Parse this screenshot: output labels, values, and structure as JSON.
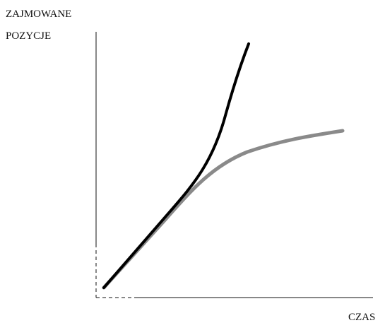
{
  "diagram": {
    "y_axis_label": [
      "ZAJMOWANE",
      "POZYCJE"
    ],
    "x_axis_label": "CZAS"
  }
}
